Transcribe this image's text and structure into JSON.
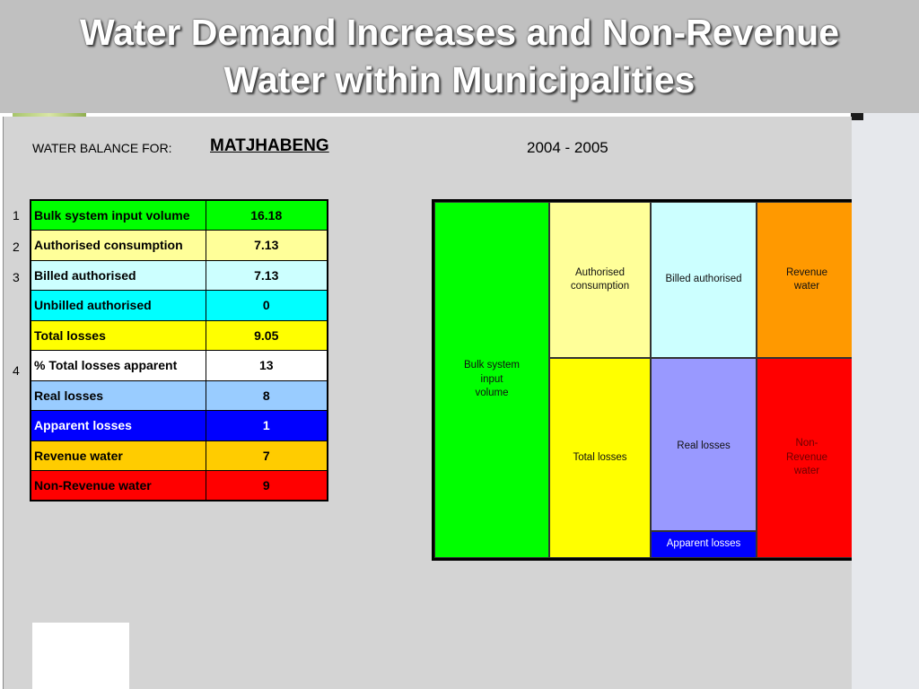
{
  "slide": {
    "title_line1": "Water Demand Increases and Non-Revenue",
    "title_line2": "Water within Municipalities"
  },
  "sheet": {
    "balance_label": "WATER BALANCE FOR:",
    "municipality": "MATJHABENG",
    "period": "2004 - 2005"
  },
  "table": {
    "rows": [
      {
        "num": "1",
        "label": "Bulk system input volume",
        "value": "16.18",
        "color": "#00ff00",
        "text_color": "#000000"
      },
      {
        "num": "2",
        "label": "Authorised consumption",
        "value": "7.13",
        "color": "#ffff99",
        "text_color": "#000000"
      },
      {
        "num": "3",
        "label": "Billed authorised",
        "value": "7.13",
        "color": "#ccffff",
        "text_color": "#000000"
      },
      {
        "num": "",
        "label": "Unbilled authorised",
        "value": "0",
        "color": "#00ffff",
        "text_color": "#000000"
      },
      {
        "num": "",
        "label": "Total losses",
        "value": "9.05",
        "color": "#ffff00",
        "text_color": "#000000"
      },
      {
        "num": "4",
        "label": "% Total losses apparent",
        "value": "13",
        "color": "#ffffff",
        "text_color": "#000000"
      },
      {
        "num": "",
        "label": "Real losses",
        "value": "8",
        "color": "#99ccff",
        "text_color": "#000000"
      },
      {
        "num": "",
        "label": "Apparent losses",
        "value": "1",
        "color": "#0000ff",
        "text_color": "#ffffff"
      },
      {
        "num": "",
        "label": "Revenue water",
        "value": "7",
        "color": "#ffcc00",
        "text_color": "#000000"
      },
      {
        "num": "",
        "label": "Non-Revenue water",
        "value": "9",
        "color": "#ff0000",
        "text_color": "#000000"
      }
    ]
  },
  "balance_chart": {
    "bulk": {
      "lines": [
        "Bulk system",
        "input",
        "volume"
      ],
      "color": "#00ff00"
    },
    "authorised": {
      "lines": [
        "Authorised",
        "consumption"
      ],
      "color": "#ffff99"
    },
    "total_losses": {
      "lines": [
        "Total losses"
      ],
      "color": "#ffff00"
    },
    "billed": {
      "lines": [
        "Billed authorised"
      ],
      "color": "#ccffff"
    },
    "real_losses": {
      "lines": [
        "Real losses"
      ],
      "color": "#9999ff"
    },
    "apparent_losses": {
      "lines": [
        "Apparent losses"
      ],
      "color": "#0000ff"
    },
    "revenue": {
      "lines": [
        "Revenue",
        "water"
      ],
      "color": "#ff9900"
    },
    "non_revenue": {
      "lines": [
        "Non-",
        "Revenue",
        "water"
      ],
      "color": "#ff0000"
    }
  }
}
